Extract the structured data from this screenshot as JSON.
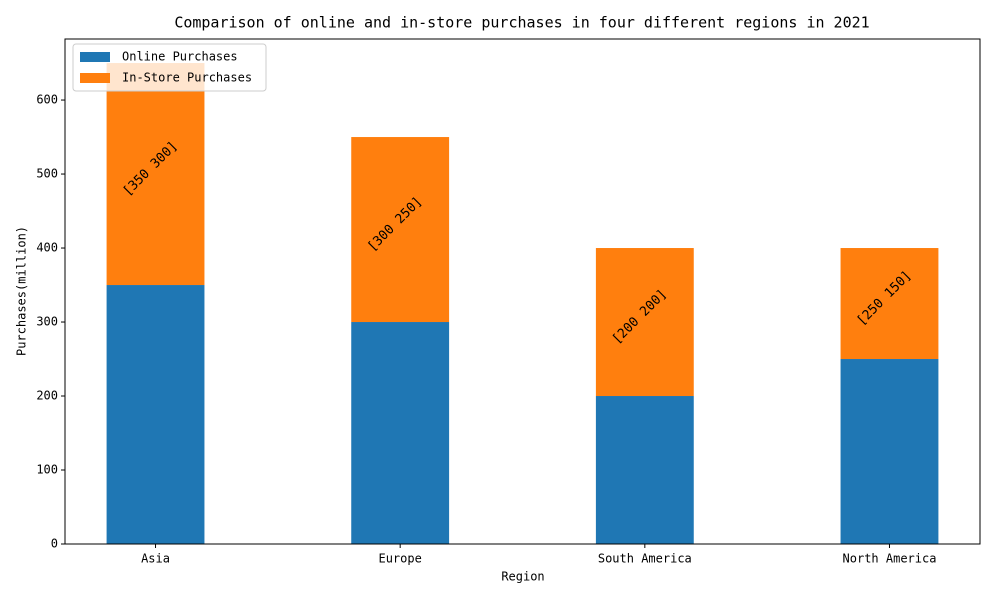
{
  "chart_data": {
    "type": "stacked_bar",
    "title": "Comparison of online and in-store purchases in four different regions in 2021",
    "x_label": "Region",
    "y_label": "Purchases(million)",
    "categories": [
      "Asia",
      "Europe",
      "South America",
      "North America"
    ],
    "series": [
      {
        "name": "Online Purchases",
        "color": "#1f77b4",
        "values": [
          350,
          300,
          200,
          250
        ]
      },
      {
        "name": "In-Store Purchases",
        "color": "#ff7f0e",
        "values": [
          300,
          250,
          200,
          150
        ]
      }
    ],
    "annotations": [
      "[350 300]",
      "[300 250]",
      "[200 200]",
      "[250 150]"
    ],
    "ylim": [
      0,
      682.5
    ],
    "yticks": [
      0,
      100,
      200,
      300,
      400,
      500,
      600
    ],
    "legend": "upper left",
    "grid": false
  }
}
